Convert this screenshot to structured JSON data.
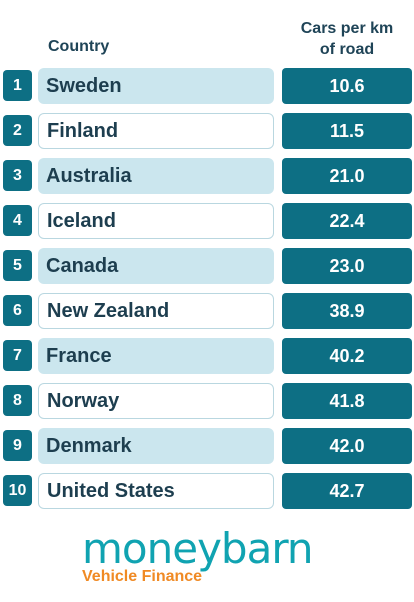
{
  "header": {
    "country_label": "Country",
    "metric_label_line1": "Cars per km",
    "metric_label_line2": "of road"
  },
  "colors": {
    "accent": "#0d6f84",
    "row_fill": "#cbe6ee",
    "brand": "#10a3b1",
    "tagline": "#f08a24"
  },
  "chart_data": {
    "type": "table",
    "columns": [
      "",
      "Country",
      "Cars per km of road"
    ],
    "rows": [
      {
        "rank": "1",
        "country": "Sweden",
        "value": "10.6"
      },
      {
        "rank": "2",
        "country": "Finland",
        "value": "11.5"
      },
      {
        "rank": "3",
        "country": "Australia",
        "value": "21.0"
      },
      {
        "rank": "4",
        "country": "Iceland",
        "value": "22.4"
      },
      {
        "rank": "5",
        "country": "Canada",
        "value": "23.0"
      },
      {
        "rank": "6",
        "country": "New Zealand",
        "value": "38.9"
      },
      {
        "rank": "7",
        "country": "France",
        "value": "40.2"
      },
      {
        "rank": "8",
        "country": "Norway",
        "value": "41.8"
      },
      {
        "rank": "9",
        "country": "Denmark",
        "value": "42.0"
      },
      {
        "rank": "10",
        "country": "United States",
        "value": "42.7"
      }
    ]
  },
  "logo": {
    "brand": "moneybarn",
    "tagline": "Vehicle Finance"
  }
}
